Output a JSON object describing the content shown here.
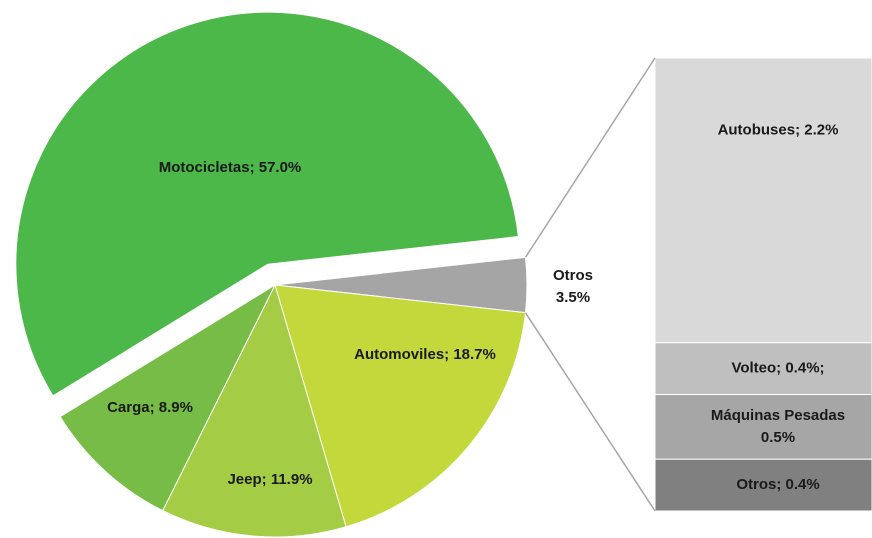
{
  "chart_data": {
    "type": "pie",
    "labels": [
      "Otros\n3.5%",
      "Automoviles; 18.7%",
      "Jeep; 11.9%",
      "Carga; 8.9%",
      "Motocicletas; 57.0%"
    ],
    "values": [
      3.5,
      18.7,
      11.9,
      8.9,
      57.0
    ],
    "colors": [
      "#a5a5a5",
      "#c3d93b",
      "#a4cd45",
      "#78bc48",
      "#4cb84a"
    ],
    "breakdown": {
      "labels": [
        "Autobuses; 2.2%",
        "Volteo; 0.4%;",
        "Máquinas Pesadas\n0.5%",
        "Otros; 0.4%"
      ],
      "values": [
        2.2,
        0.4,
        0.5,
        0.4
      ],
      "colors": [
        "#d9d9d9",
        "#bfbfbf",
        "#a6a6a6",
        "#808080"
      ]
    }
  }
}
